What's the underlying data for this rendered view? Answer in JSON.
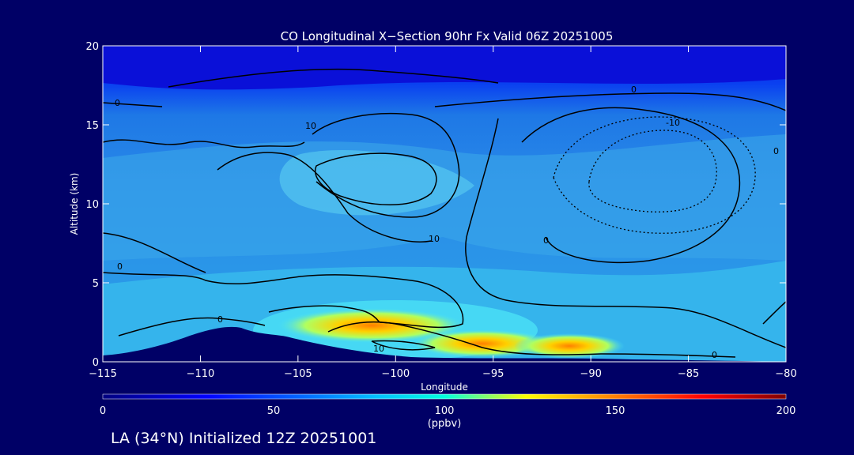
{
  "chart_data": {
    "type": "heatmap",
    "title": "CO Longitudinal X−Section 90hr  Fx Valid 06Z 20251005",
    "xlabel": "Longitude",
    "ylabel": "Altitude (km)",
    "xlim": [
      -115,
      -80
    ],
    "ylim": [
      0,
      20
    ],
    "x_ticks": [
      -115,
      -110,
      -105,
      -100,
      -95,
      -90,
      -85,
      -80
    ],
    "y_ticks": [
      0,
      5,
      10,
      15,
      20
    ],
    "colorbar": {
      "ticks": [
        0,
        50,
        100,
        150,
        200
      ],
      "unit": "(ppbv)",
      "colors": [
        "#000080",
        "#0000ff",
        "#00a0ff",
        "#00ffff",
        "#ffff00",
        "#ff8000",
        "#ff0000",
        "#800000"
      ]
    },
    "contour_labels": [
      "0",
      "10",
      "0",
      "0",
      "10",
      "-10",
      "0",
      "0",
      "0",
      "10",
      "0"
    ],
    "footer": "LA (34°N) Initialized 12Z 20251001"
  }
}
